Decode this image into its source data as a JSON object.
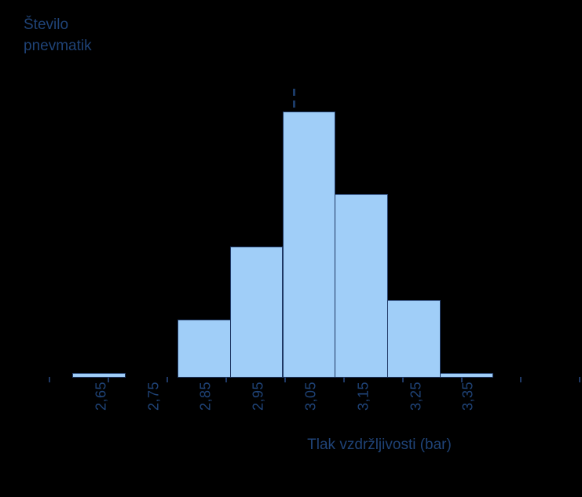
{
  "colors": {
    "background": "#000000",
    "bar_fill": "#A0CEF8",
    "bar_edge": "#1F3864",
    "dashed_line": "#1B3A66",
    "text": "#1F4377"
  },
  "chart_data": {
    "type": "bar",
    "subtype": "histogram",
    "title": "Število pnevmatik",
    "ylabel": "Število pnevmatik",
    "ylabel_display": "Število\npnevmatik",
    "xlabel": "Tlak vzdržljivosti (bar)",
    "categories": [
      "2,65",
      "2,75",
      "2,85",
      "2,95",
      "3,05",
      "3,15",
      "3,25",
      "3,35"
    ],
    "values": [
      1,
      0,
      12,
      27,
      55,
      38,
      16,
      1
    ],
    "values_note": "counts estimated from bar pixel heights; no y-axis scale shown",
    "bin_width_bar": 0.1,
    "first_bin_center_bar": 2.65,
    "decimal_separator": ",",
    "annotation": {
      "type": "dashed-vertical-line",
      "value_bar": 3.02
    },
    "legend": null,
    "grid": false,
    "y_axis_visible": false
  }
}
